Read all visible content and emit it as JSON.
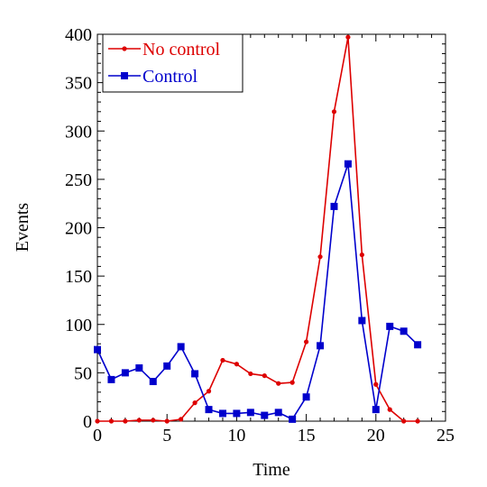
{
  "chart_data": {
    "type": "line",
    "xlabel": "Time",
    "ylabel": "Events",
    "xlim": [
      0,
      25
    ],
    "ylim": [
      0,
      400
    ],
    "xticks": [
      0,
      5,
      10,
      15,
      20,
      25
    ],
    "yticks": [
      0,
      50,
      100,
      150,
      200,
      250,
      300,
      350,
      400
    ],
    "grid": false,
    "legend_position": "top-left",
    "series": [
      {
        "name": "No control",
        "color": "#dd0000",
        "marker": "circle",
        "x": [
          0,
          1,
          2,
          3,
          4,
          5,
          6,
          7,
          8,
          9,
          10,
          11,
          12,
          13,
          14,
          15,
          16,
          17,
          18,
          19,
          20,
          21,
          22,
          23
        ],
        "values": [
          0,
          0,
          0,
          1,
          1,
          0,
          2,
          19,
          31,
          63,
          59,
          49,
          47,
          39,
          40,
          82,
          170,
          320,
          397,
          172,
          38,
          12,
          0,
          0
        ]
      },
      {
        "name": "Control",
        "color": "#0000cc",
        "marker": "square",
        "x": [
          0,
          1,
          2,
          3,
          4,
          5,
          6,
          7,
          8,
          9,
          10,
          11,
          12,
          13,
          14,
          15,
          16,
          17,
          18,
          19,
          20,
          21,
          22,
          23
        ],
        "values": [
          74,
          43,
          50,
          55,
          41,
          57,
          77,
          49,
          12,
          8,
          8,
          9,
          6,
          9,
          2,
          25,
          78,
          222,
          266,
          104,
          12,
          98,
          93,
          79
        ]
      }
    ]
  }
}
